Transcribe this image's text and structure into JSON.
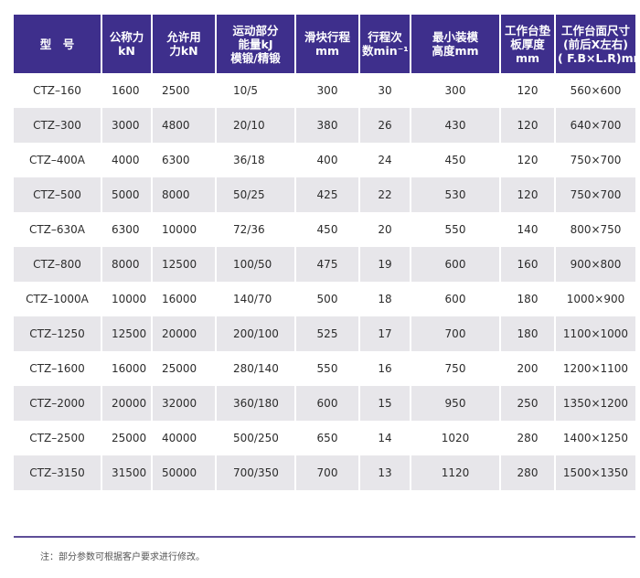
{
  "table": {
    "headers": [
      {
        "lines": [
          "型　号"
        ]
      },
      {
        "lines": [
          "公称力",
          "kN"
        ]
      },
      {
        "lines": [
          "允许用",
          "力kN"
        ]
      },
      {
        "lines": [
          "运动部分",
          "能量kJ",
          "模锻/精锻"
        ]
      },
      {
        "lines": [
          "滑块行程",
          "mm"
        ]
      },
      {
        "lines": [
          "行程次",
          "数min⁻¹"
        ]
      },
      {
        "lines": [
          "最小装模",
          "高度mm"
        ]
      },
      {
        "lines": [
          "工作台垫",
          "板厚度",
          "mm"
        ]
      },
      {
        "lines": [
          "工作台面尺寸",
          "(前后X左右)",
          "( F.B×L.R)mm"
        ]
      }
    ],
    "rows": [
      [
        "CTZ–160",
        "1600",
        "2500",
        "10/5",
        "300",
        "30",
        "300",
        "120",
        "560×600"
      ],
      [
        "CTZ–300",
        "3000",
        "4800",
        "20/10",
        "380",
        "26",
        "430",
        "120",
        "640×700"
      ],
      [
        "CTZ–400A",
        "4000",
        "6300",
        "36/18",
        "400",
        "24",
        "450",
        "120",
        "750×700"
      ],
      [
        "CTZ–500",
        "5000",
        "8000",
        "50/25",
        "425",
        "22",
        "530",
        "120",
        "750×700"
      ],
      [
        "CTZ–630A",
        "6300",
        "10000",
        "72/36",
        "450",
        "20",
        "550",
        "140",
        "800×750"
      ],
      [
        "CTZ–800",
        "8000",
        "12500",
        "100/50",
        "475",
        "19",
        "600",
        "160",
        "900×800"
      ],
      [
        "CTZ–1000A",
        "10000",
        "16000",
        "140/70",
        "500",
        "18",
        "600",
        "180",
        "1000×900"
      ],
      [
        "CTZ–1250",
        "12500",
        "20000",
        "200/100",
        "525",
        "17",
        "700",
        "180",
        "1100×1000"
      ],
      [
        "CTZ–1600",
        "16000",
        "25000",
        "280/140",
        "550",
        "16",
        "750",
        "200",
        "1200×1100"
      ],
      [
        "CTZ–2000",
        "20000",
        "32000",
        "360/180",
        "600",
        "15",
        "950",
        "250",
        "1350×1200"
      ],
      [
        "CTZ–2500",
        "25000",
        "40000",
        "500/250",
        "650",
        "14",
        "1020",
        "280",
        "1400×1250"
      ],
      [
        "CTZ–3150",
        "31500",
        "50000",
        "700/350",
        "700",
        "13",
        "1120",
        "280",
        "1500×1350"
      ]
    ]
  },
  "note": "注：部分参数可根据客户要求进行修改。",
  "colors": {
    "header_bg": "#3e2f8c",
    "header_text": "#ffffff",
    "row_alt_bg": "#e7e6ea",
    "divider": "#5e4f98"
  }
}
